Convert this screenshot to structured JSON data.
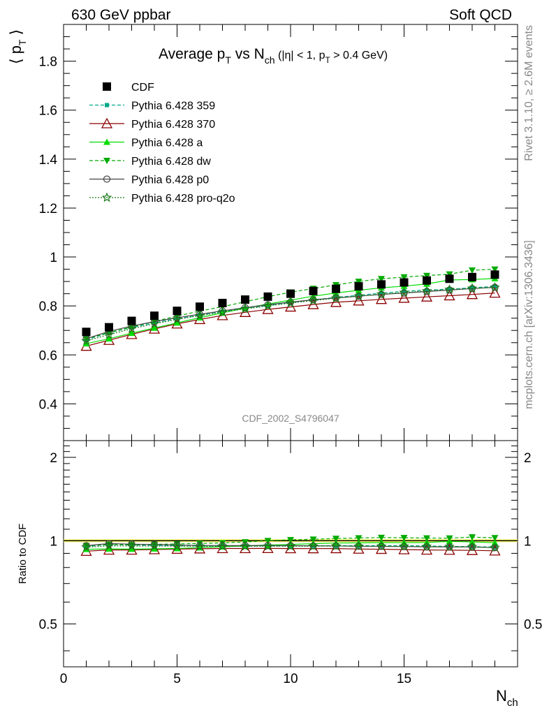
{
  "header": {
    "left": "630 GeV ppbar",
    "right": "Soft QCD"
  },
  "side": {
    "rivet": "Rivet 3.1.10, ≥ 2.6M events",
    "mcplots": "mcplots.cern.ch [arXiv:1306.3436]"
  },
  "main_plot": {
    "title_main": "Average p",
    "title_sub_T": "T",
    "title_vs": " vs N",
    "title_sub_ch": "ch",
    "title_cut_1": " (|η| < 1, p",
    "title_cut_sub": "T",
    "title_cut_2": " > 0.4 GeV)",
    "watermark": "CDF_2002_S4796047",
    "ylabel_main": "⟨ p",
    "ylabel_sub": "T",
    "ylabel_close": " ⟩",
    "yticks": [
      "0.4",
      "0.6",
      "0.8",
      "1",
      "1.2",
      "1.4",
      "1.6",
      "1.8"
    ]
  },
  "ratio_plot": {
    "ylabel": "Ratio to CDF",
    "yticks_left": [
      "0.5",
      "1",
      "2"
    ],
    "yticks_right": [
      "0.5",
      "1",
      "2"
    ]
  },
  "xaxis": {
    "ticks": [
      "0",
      "5",
      "10",
      "15"
    ],
    "label_main": "N",
    "label_sub": "ch"
  },
  "legend": [
    {
      "label": "CDF"
    },
    {
      "label": "Pythia 6.428 359"
    },
    {
      "label": "Pythia 6.428 370"
    },
    {
      "label": "Pythia 6.428 a"
    },
    {
      "label": "Pythia 6.428 dw"
    },
    {
      "label": "Pythia 6.428 p0"
    },
    {
      "label": "Pythia 6.428 pro-q2o"
    }
  ],
  "chart_data": {
    "type": "scatter",
    "title": "Average pT vs Nch (|η| < 1, pT > 0.4 GeV)",
    "xlabel": "Nch",
    "ylabel": "⟨ pT ⟩",
    "xlim": [
      0,
      20
    ],
    "ylim": [
      0.25,
      1.95
    ],
    "ratio_ylim_log": [
      0.35,
      2.3
    ],
    "grid": false,
    "legend_position": "top-left",
    "x": [
      1,
      2,
      3,
      4,
      5,
      6,
      7,
      8,
      9,
      10,
      11,
      12,
      13,
      14,
      15,
      16,
      17,
      18,
      19
    ],
    "series": [
      {
        "name": "CDF",
        "color": "#000000",
        "marker": "square-filled",
        "line": "none",
        "values": [
          0.694,
          0.713,
          0.739,
          0.76,
          0.78,
          0.797,
          0.812,
          0.826,
          0.838,
          0.85,
          0.861,
          0.87,
          0.88,
          0.888,
          0.896,
          0.904,
          0.911,
          0.918,
          0.928
        ]
      },
      {
        "name": "Pythia 6.428 359",
        "color": "#00a88a",
        "marker": "square-small",
        "line": "dashed",
        "values": [
          0.662,
          0.69,
          0.712,
          0.731,
          0.748,
          0.763,
          0.777,
          0.79,
          0.802,
          0.814,
          0.825,
          0.835,
          0.844,
          0.852,
          0.86,
          0.865,
          0.869,
          0.874,
          0.88
        ]
      },
      {
        "name": "Pythia 6.428 370",
        "color": "#8b0000",
        "marker": "triangle-up-open",
        "line": "solid",
        "values": [
          0.636,
          0.66,
          0.684,
          0.706,
          0.727,
          0.745,
          0.761,
          0.774,
          0.786,
          0.796,
          0.806,
          0.815,
          0.821,
          0.827,
          0.832,
          0.837,
          0.842,
          0.847,
          0.853
        ]
      },
      {
        "name": "Pythia 6.428 a",
        "color": "#00dd00",
        "marker": "triangle-up-filled",
        "line": "solid",
        "values": [
          0.646,
          0.666,
          0.689,
          0.71,
          0.731,
          0.752,
          0.772,
          0.791,
          0.808,
          0.824,
          0.84,
          0.853,
          0.864,
          0.874,
          0.881,
          0.89,
          0.906,
          0.908,
          0.912
        ]
      },
      {
        "name": "Pythia 6.428 dw",
        "color": "#00aa00",
        "marker": "triangle-down-filled",
        "line": "dashed",
        "values": [
          0.665,
          0.691,
          0.714,
          0.737,
          0.759,
          0.779,
          0.797,
          0.817,
          0.838,
          0.856,
          0.871,
          0.886,
          0.9,
          0.911,
          0.918,
          0.924,
          0.93,
          0.946,
          0.95
        ]
      },
      {
        "name": "Pythia 6.428 p0",
        "color": "#444444",
        "marker": "circle-open",
        "line": "solid",
        "values": [
          0.666,
          0.696,
          0.718,
          0.736,
          0.752,
          0.766,
          0.78,
          0.793,
          0.805,
          0.816,
          0.825,
          0.833,
          0.84,
          0.847,
          0.853,
          0.859,
          0.865,
          0.871,
          0.876
        ]
      },
      {
        "name": "Pythia 6.428 pro-q2o",
        "color": "#1a7a1a",
        "marker": "star-open",
        "line": "dotted",
        "values": [
          0.657,
          0.683,
          0.707,
          0.727,
          0.745,
          0.76,
          0.775,
          0.788,
          0.8,
          0.812,
          0.822,
          0.832,
          0.84,
          0.848,
          0.855,
          0.861,
          0.867,
          0.872,
          0.876
        ]
      }
    ]
  }
}
